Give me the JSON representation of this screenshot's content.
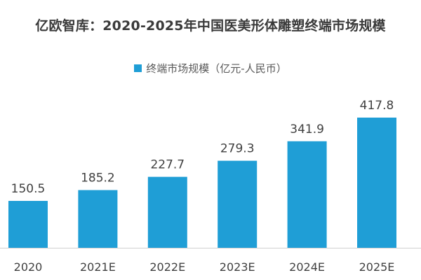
{
  "chart_data": {
    "type": "bar",
    "title": "亿欧智库：2020-2025年中国医美形体雕塑终端市场规模",
    "categories": [
      "2020",
      "2021E",
      "2022E",
      "2023E",
      "2024E",
      "2025E"
    ],
    "series": [
      {
        "name": "终端市场规模（亿元-人民币）",
        "values": [
          150.5,
          185.2,
          227.7,
          279.3,
          341.9,
          417.8
        ]
      }
    ],
    "value_labels": [
      "150.5",
      "185.2",
      "227.7",
      "279.3",
      "341.9",
      "417.8"
    ],
    "xlabel": "",
    "ylabel": "",
    "legend_position": "top",
    "grid": false,
    "colors": {
      "bar": "#1f9ed6",
      "axis": "#d0d0d0"
    }
  }
}
